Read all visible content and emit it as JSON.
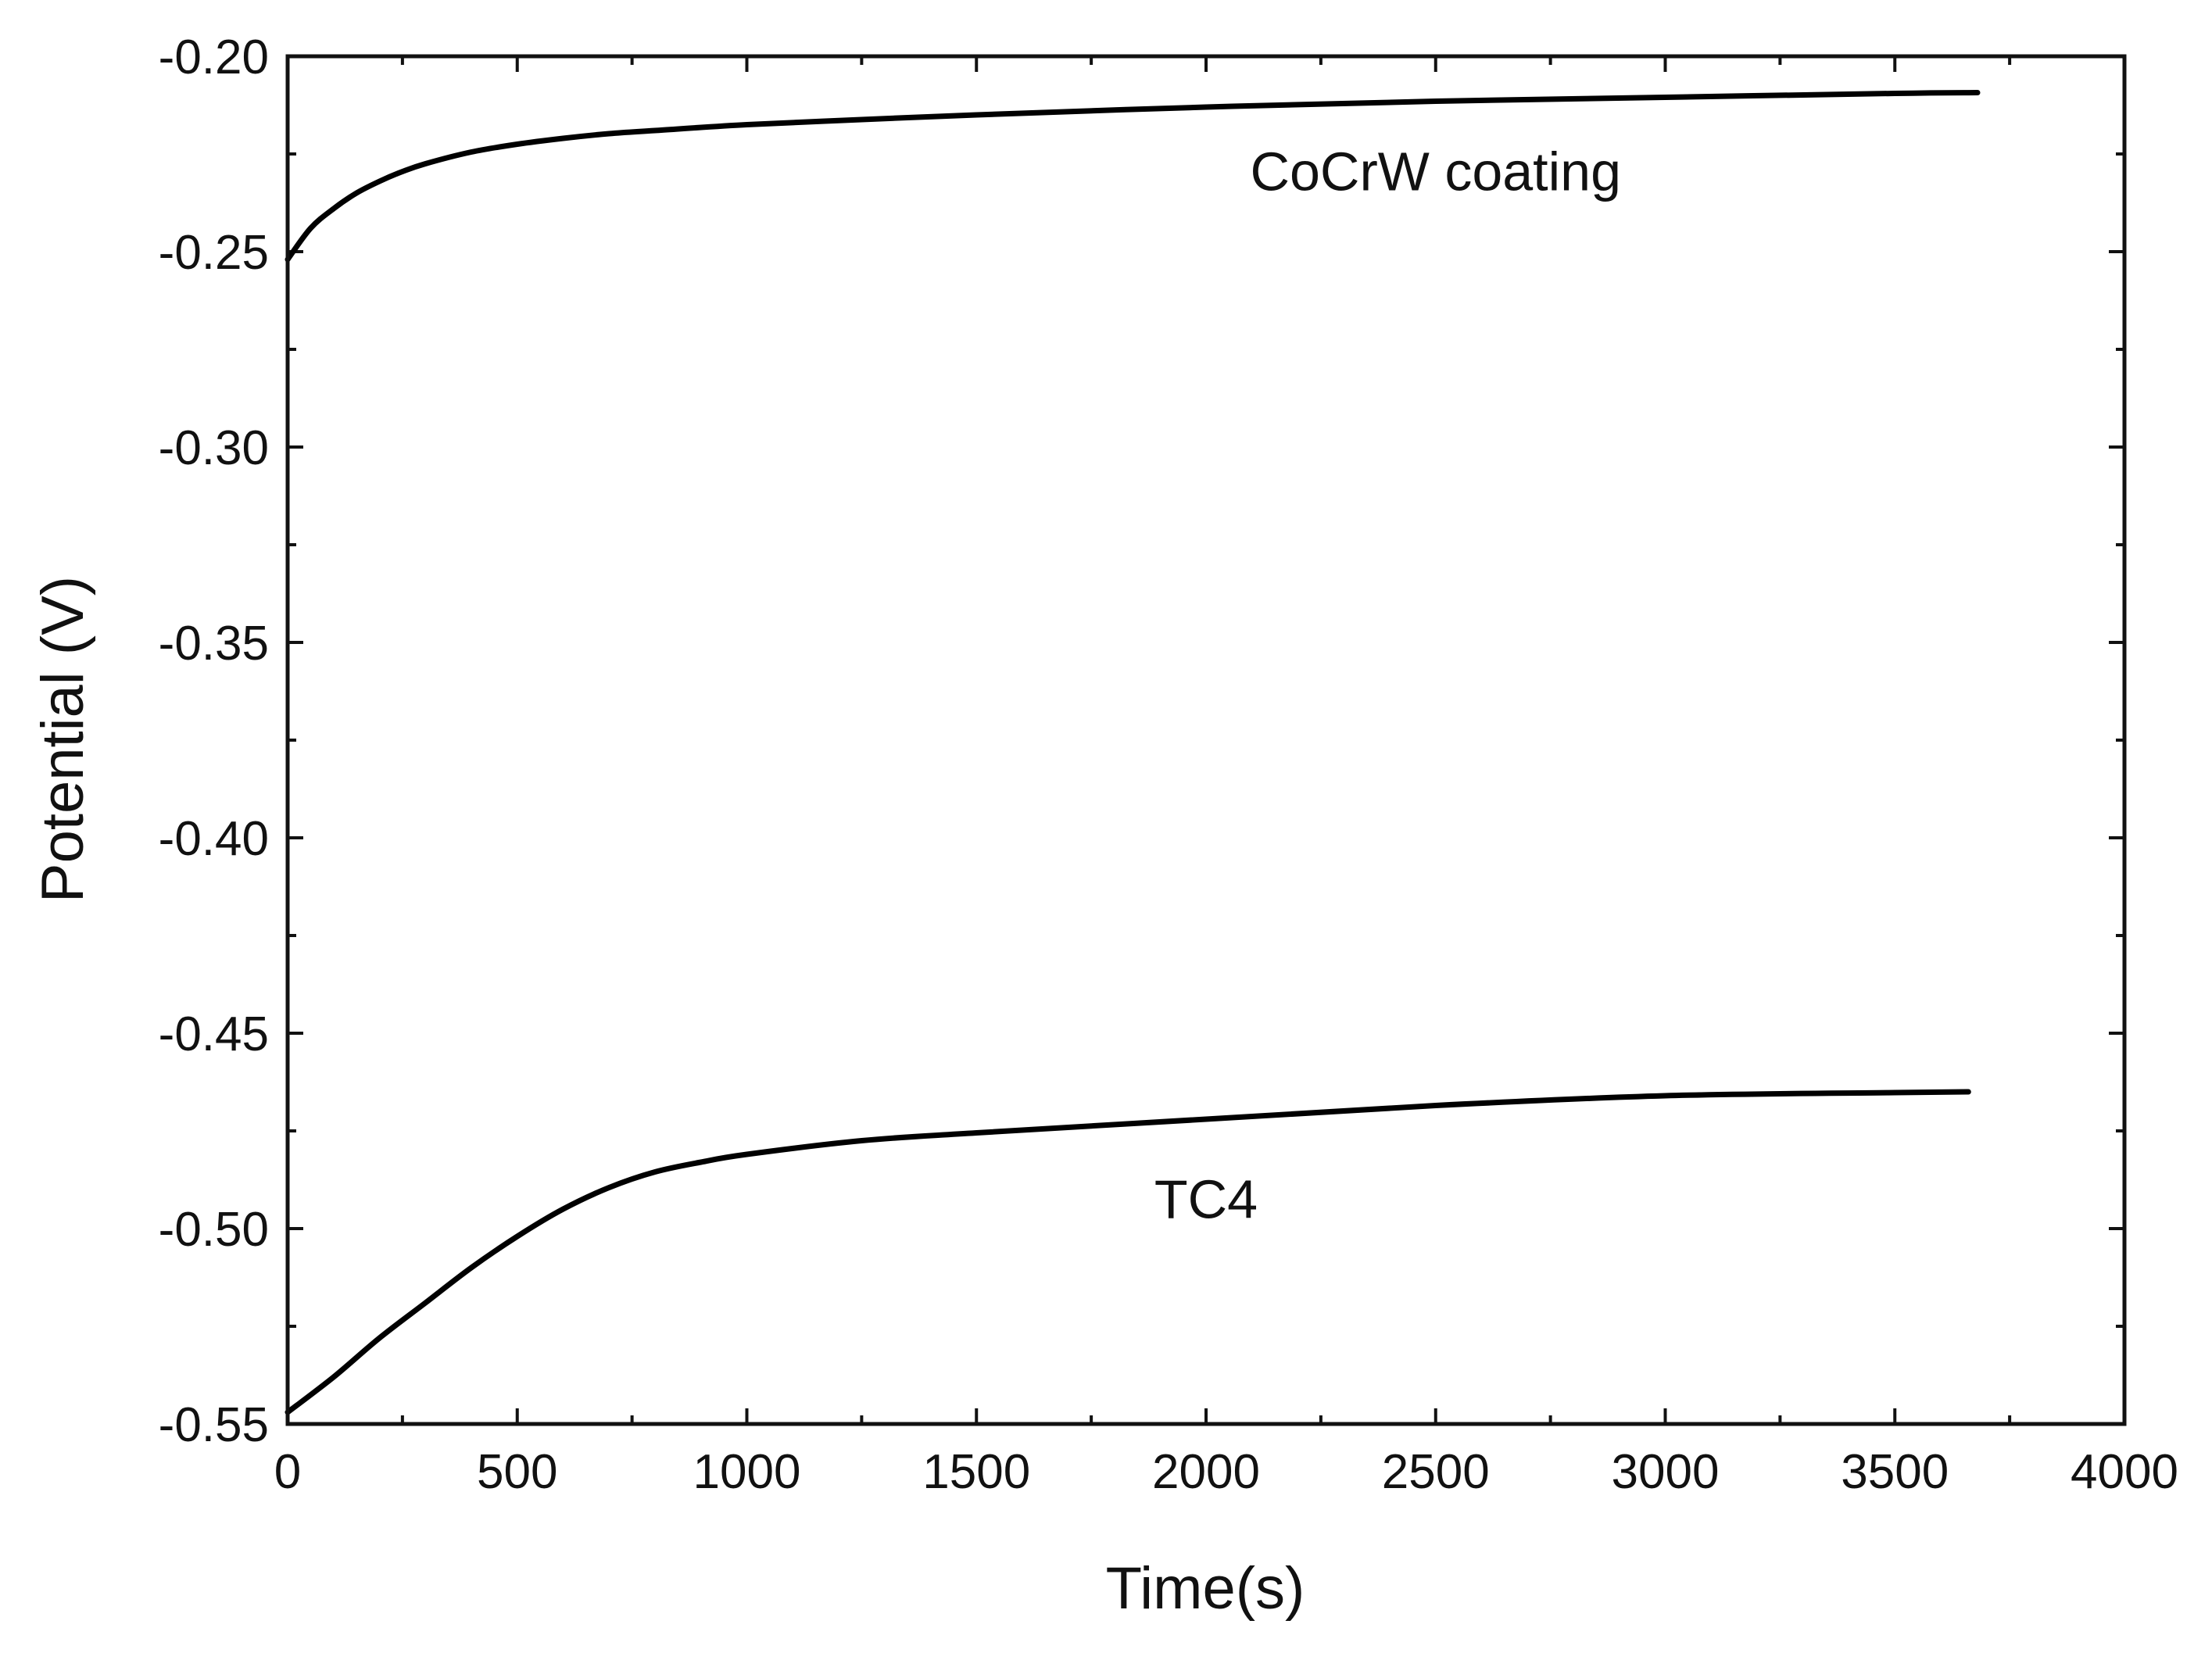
{
  "chart_data": {
    "type": "line",
    "title": "",
    "xlabel": "Time(s)",
    "ylabel": "Potential (V)",
    "xlim": [
      0,
      4000
    ],
    "ylim": [
      -0.55,
      -0.2
    ],
    "xticks": [
      0,
      500,
      1000,
      1500,
      2000,
      2500,
      3000,
      3500,
      4000
    ],
    "xtick_labels": [
      "0",
      "500",
      "1000",
      "1500",
      "2000",
      "2500",
      "3000",
      "3500",
      "4000"
    ],
    "yticks": [
      -0.55,
      -0.5,
      -0.45,
      -0.4,
      -0.35,
      -0.3,
      -0.25,
      -0.2
    ],
    "ytick_labels": [
      "-0.55",
      "-0.50",
      "-0.45",
      "-0.40",
      "-0.35",
      "-0.30",
      "-0.25",
      "-0.20"
    ],
    "x_minor_step": 250,
    "y_minor_step": 0.025,
    "grid": false,
    "series": [
      {
        "name": "CoCrW coating",
        "x": [
          0,
          50,
          100,
          150,
          200,
          250,
          300,
          400,
          500,
          600,
          700,
          800,
          1000,
          1250,
          1500,
          2000,
          2500,
          3000,
          3500,
          3680
        ],
        "y": [
          -0.252,
          -0.244,
          -0.239,
          -0.235,
          -0.232,
          -0.2295,
          -0.2275,
          -0.2245,
          -0.2225,
          -0.221,
          -0.2198,
          -0.219,
          -0.2175,
          -0.2162,
          -0.215,
          -0.213,
          -0.2115,
          -0.2105,
          -0.2095,
          -0.2093
        ]
      },
      {
        "name": "TC4",
        "x": [
          0,
          100,
          200,
          300,
          400,
          500,
          600,
          700,
          800,
          900,
          1000,
          1250,
          1500,
          2000,
          2500,
          3000,
          3500,
          3660
        ],
        "y": [
          -0.547,
          -0.538,
          -0.528,
          -0.519,
          -0.51,
          -0.502,
          -0.495,
          -0.4895,
          -0.4855,
          -0.483,
          -0.481,
          -0.4775,
          -0.4755,
          -0.472,
          -0.4685,
          -0.466,
          -0.4652,
          -0.465
        ]
      }
    ],
    "annotations": [
      {
        "text": "CoCrW coating",
        "x": 2500,
        "y": -0.2295
      },
      {
        "text": "TC4",
        "x": 2000,
        "y": -0.4925
      }
    ]
  }
}
